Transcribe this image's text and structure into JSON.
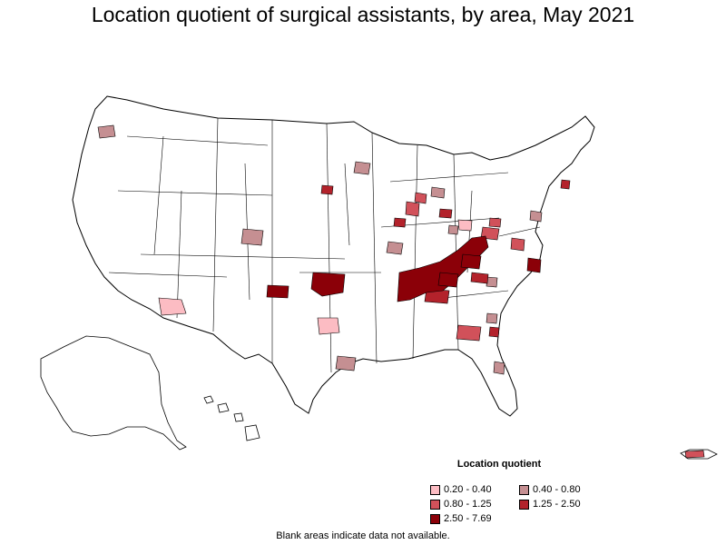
{
  "title": "Location quotient of surgical assistants, by area, May 2021",
  "legend": {
    "title": "Location quotient",
    "items": [
      {
        "label": "0.20 - 0.40",
        "color": "#fcbcc3"
      },
      {
        "label": "0.40 - 0.80",
        "color": "#c58f92"
      },
      {
        "label": "0.80 - 1.25",
        "color": "#d1515a"
      },
      {
        "label": "1.25 - 2.50",
        "color": "#b3222b"
      },
      {
        "label": "2.50 - 7.69",
        "color": "#8b0008"
      }
    ]
  },
  "note": "Blank areas indicate data not available."
}
